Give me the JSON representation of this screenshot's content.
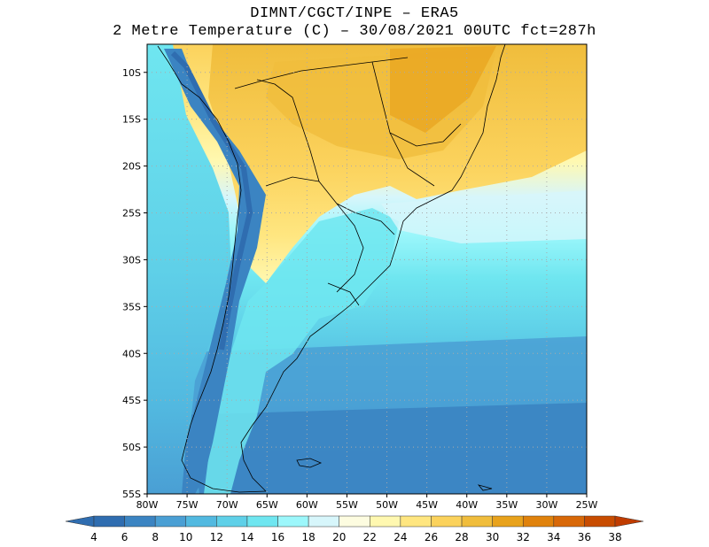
{
  "header": {
    "line1": "DIMNT/CGCT/INPE –  ERA5",
    "line2": "2 Metre Temperature (C) –  30/08/2021 00UTC fct=287h"
  },
  "map": {
    "lon_range": [
      -80,
      -25
    ],
    "lat_range": [
      -55,
      -7
    ],
    "lon_labels": [
      "80W",
      "75W",
      "70W",
      "65W",
      "60W",
      "55W",
      "50W",
      "45W",
      "40W",
      "35W",
      "30W",
      "25W"
    ],
    "lat_labels": [
      "10S",
      "15S",
      "20S",
      "25S",
      "30S",
      "35S",
      "40S",
      "45S",
      "50S",
      "55S"
    ],
    "lat_values": [
      -10,
      -15,
      -20,
      -25,
      -30,
      -35,
      -40,
      -45,
      -50,
      -55
    ],
    "lon_values": [
      -80,
      -75,
      -70,
      -65,
      -60,
      -55,
      -50,
      -45,
      -40,
      -35,
      -30,
      -25
    ]
  },
  "colorbar": {
    "labels": [
      "4",
      "6",
      "8",
      "10",
      "12",
      "14",
      "16",
      "18",
      "20",
      "22",
      "24",
      "26",
      "28",
      "30",
      "32",
      "34",
      "36",
      "38"
    ],
    "colors": [
      "#2f6db0",
      "#3b84c2",
      "#4a9fd4",
      "#52b9e0",
      "#5fd0e8",
      "#6fe6f0",
      "#9cf7fb",
      "#d7f6fb",
      "#fdfce0",
      "#fff8b0",
      "#ffe680",
      "#fbd25c",
      "#f0bd3c",
      "#e8a21c",
      "#e0820c",
      "#d86808",
      "#c84c00"
    ],
    "left_arrow_color": "#2f6db0",
    "right_arrow_color": "#c03c00"
  }
}
